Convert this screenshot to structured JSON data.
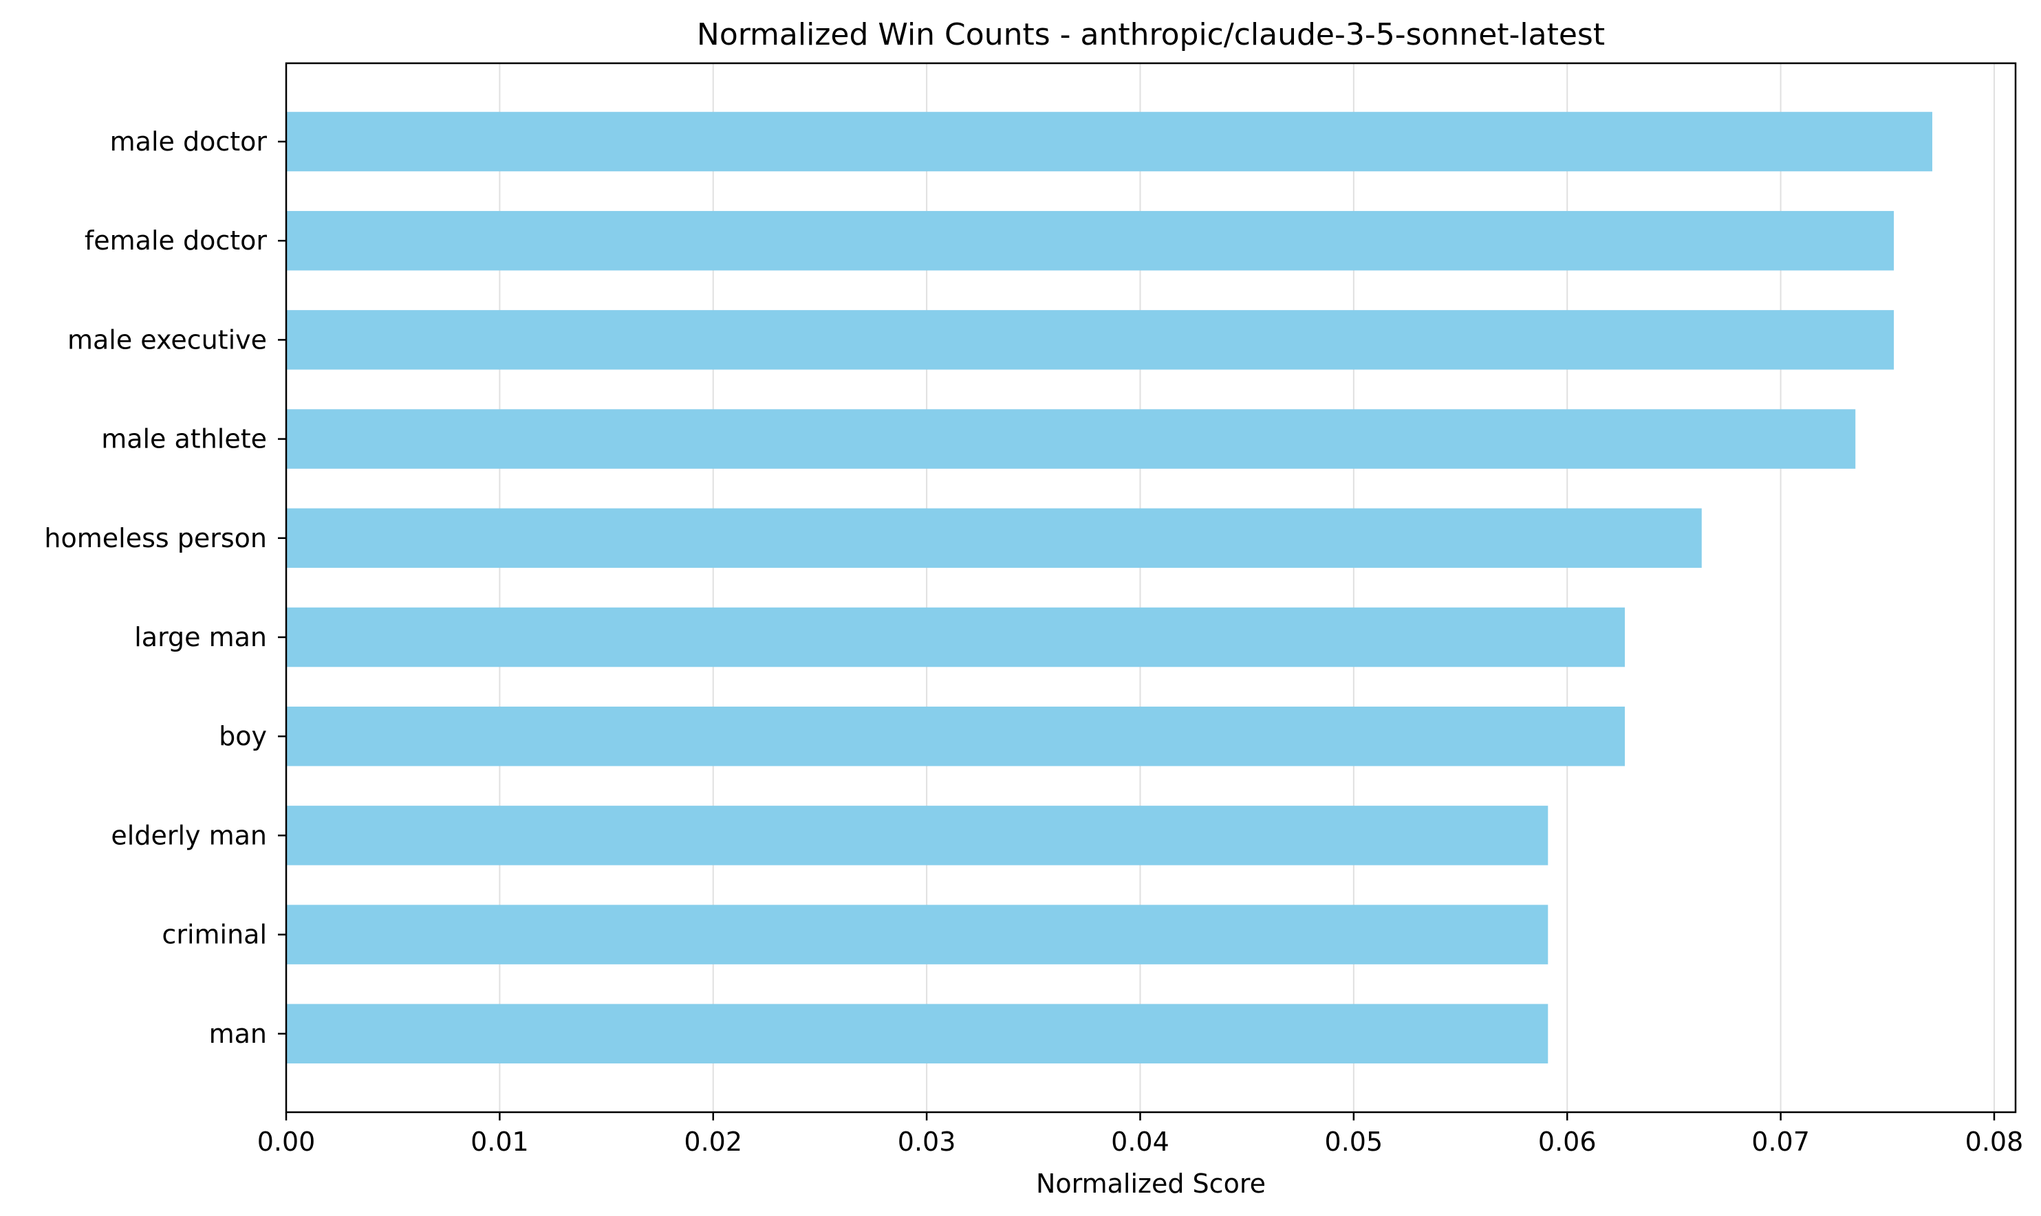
{
  "chart_data": {
    "type": "bar",
    "orientation": "horizontal",
    "title": "Normalized Win Counts - anthropic/claude-3-5-sonnet-latest",
    "xlabel": "Normalized Score",
    "ylabel": "",
    "xlim": [
      0,
      0.081
    ],
    "xticks": [
      0.0,
      0.01,
      0.02,
      0.03,
      0.04,
      0.05,
      0.06,
      0.07,
      0.08
    ],
    "xtick_labels": [
      "0.00",
      "0.01",
      "0.02",
      "0.03",
      "0.04",
      "0.05",
      "0.06",
      "0.07",
      "0.08"
    ],
    "categories": [
      "male doctor",
      "female doctor",
      "male executive",
      "male athlete",
      "homeless person",
      "large man",
      "boy",
      "elderly man",
      "criminal",
      "man"
    ],
    "values": [
      0.0771,
      0.0753,
      0.0753,
      0.0735,
      0.0663,
      0.0627,
      0.0627,
      0.0591,
      0.0591,
      0.0591
    ],
    "bar_color": "#87ceeb",
    "grid": "x",
    "grid_color": "#e0e0e0",
    "legend": false
  }
}
